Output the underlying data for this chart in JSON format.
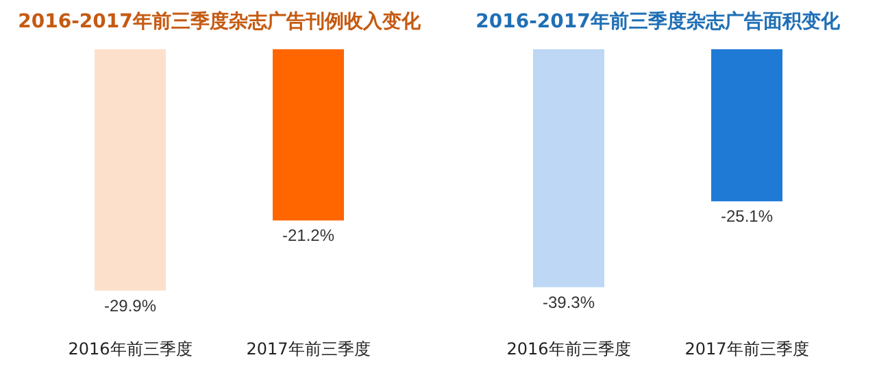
{
  "chart_data": [
    {
      "type": "bar",
      "title": "2016-2017年前三季度杂志广告刊例收入变化",
      "categories": [
        "2016年前三季度",
        "2017年前三季度"
      ],
      "values": [
        -29.9,
        -21.2
      ],
      "colors": [
        "#fde0cc",
        "#ff6600"
      ],
      "value_labels": [
        "-29.9%",
        "-21.2%"
      ]
    },
    {
      "type": "bar",
      "title": "2016-2017年前三季度杂志广告面积变化",
      "categories": [
        "2016年前三季度",
        "2017年前三季度"
      ],
      "values": [
        -39.3,
        -25.1
      ],
      "colors": [
        "#bdd7f5",
        "#1f7ad6"
      ],
      "value_labels": [
        "-39.3%",
        "-25.1%"
      ]
    }
  ]
}
